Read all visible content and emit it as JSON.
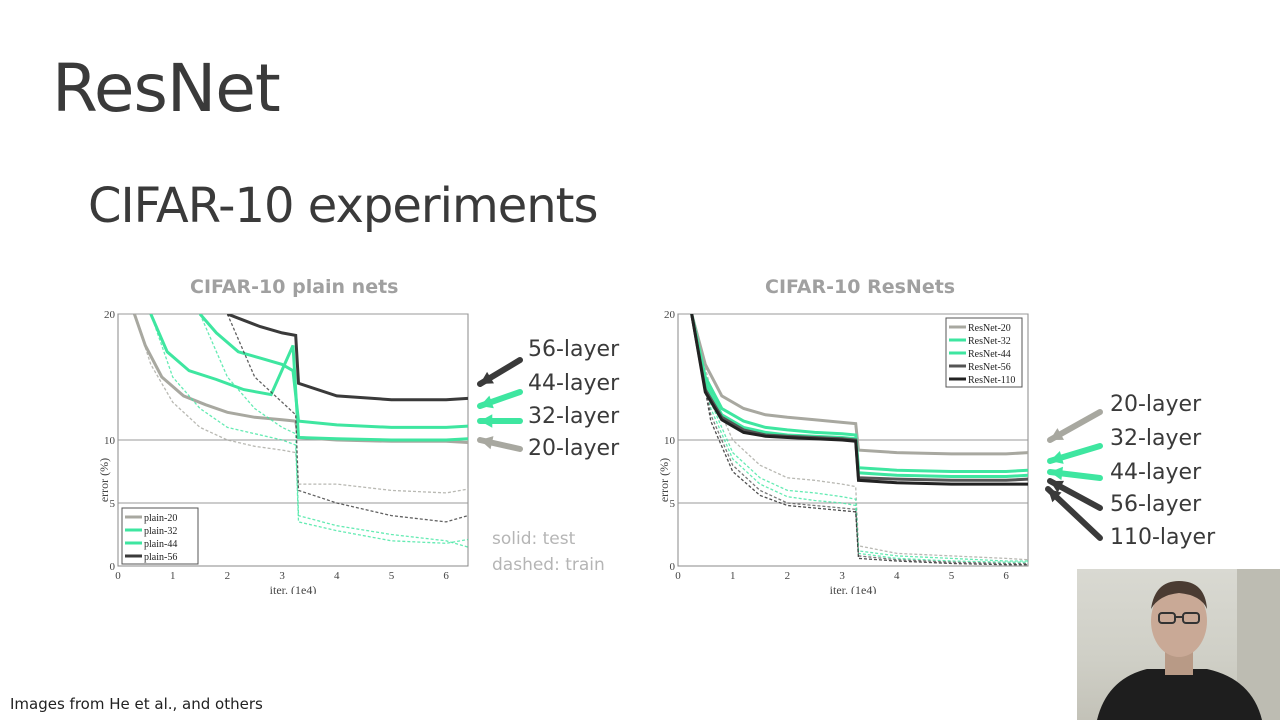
{
  "slide": {
    "title": "ResNet",
    "subtitle": "CIFAR-10 experiments",
    "caption": "Images from He et al., and others",
    "legend_note": [
      "solid: test",
      "dashed: train"
    ]
  },
  "annotations_left": [
    {
      "label": "56-layer",
      "color": "#3a3a3a"
    },
    {
      "label": "44-layer",
      "color": "#3ee6a0"
    },
    {
      "label": "32-layer",
      "color": "#3ee6a0"
    },
    {
      "label": "20-layer",
      "color": "#a8a8a0"
    }
  ],
  "annotations_right": [
    {
      "label": "20-layer",
      "color": "#a8a8a0"
    },
    {
      "label": "32-layer",
      "color": "#3ee6a0"
    },
    {
      "label": "44-layer",
      "color": "#3ee6a0"
    },
    {
      "label": "56-layer",
      "color": "#3a3a3a"
    },
    {
      "label": "110-layer",
      "color": "#3a3a3a"
    }
  ],
  "chart_data": [
    {
      "type": "line",
      "title": "CIFAR-10 plain nets",
      "xlabel": "iter. (1e4)",
      "ylabel": "error (%)",
      "xlim": [
        0,
        6.4
      ],
      "ylim": [
        0,
        20
      ],
      "xticks": [
        "0",
        "1",
        "2",
        "3",
        "4",
        "5",
        "6"
      ],
      "yticks": [
        "0",
        "5",
        "10",
        "20"
      ],
      "grid_y": [
        5,
        10,
        20
      ],
      "legend_position": "bottom-left",
      "series": [
        {
          "name": "plain-20",
          "color": "#a8a8a0",
          "test": [
            [
              0.3,
              20
            ],
            [
              0.5,
              17.5
            ],
            [
              0.8,
              15
            ],
            [
              1.2,
              13.5
            ],
            [
              1.6,
              12.8
            ],
            [
              2.0,
              12.2
            ],
            [
              2.5,
              11.8
            ],
            [
              3.0,
              11.6
            ],
            [
              3.25,
              11.5
            ],
            [
              3.3,
              10.2
            ],
            [
              4,
              10
            ],
            [
              5,
              9.9
            ],
            [
              6,
              9.9
            ],
            [
              6.4,
              9.8
            ]
          ],
          "train": [
            [
              0.3,
              20
            ],
            [
              0.6,
              16
            ],
            [
              1.0,
              13
            ],
            [
              1.5,
              11
            ],
            [
              2.0,
              10
            ],
            [
              2.5,
              9.5
            ],
            [
              3.0,
              9.2
            ],
            [
              3.25,
              9
            ],
            [
              3.3,
              6.5
            ],
            [
              4,
              6.5
            ],
            [
              5,
              6
            ],
            [
              6,
              5.8
            ],
            [
              6.4,
              6.1
            ]
          ]
        },
        {
          "name": "plain-32",
          "color": "#3ee6a0",
          "test": [
            [
              0.6,
              20
            ],
            [
              0.9,
              17
            ],
            [
              1.3,
              15.5
            ],
            [
              1.8,
              14.8
            ],
            [
              2.3,
              14
            ],
            [
              2.8,
              13.6
            ],
            [
              3.2,
              17.5
            ],
            [
              3.3,
              10.2
            ],
            [
              4,
              10.1
            ],
            [
              5,
              10
            ],
            [
              6,
              10
            ],
            [
              6.4,
              10.1
            ]
          ],
          "train": [
            [
              0.6,
              20
            ],
            [
              1.0,
              15
            ],
            [
              1.5,
              12.5
            ],
            [
              2.0,
              11
            ],
            [
              2.5,
              10.5
            ],
            [
              3.0,
              10
            ],
            [
              3.25,
              9.6
            ],
            [
              3.3,
              3.5
            ],
            [
              4,
              2.8
            ],
            [
              5,
              2
            ],
            [
              6,
              1.8
            ],
            [
              6.4,
              2.1
            ]
          ]
        },
        {
          "name": "plain-44",
          "color": "#3ee6a0",
          "test": [
            [
              1.5,
              20
            ],
            [
              1.8,
              18.5
            ],
            [
              2.2,
              17
            ],
            [
              2.6,
              16.5
            ],
            [
              3.0,
              16
            ],
            [
              3.2,
              15.5
            ],
            [
              3.3,
              11.5
            ],
            [
              4,
              11.2
            ],
            [
              5,
              11
            ],
            [
              6,
              11
            ],
            [
              6.4,
              11.1
            ]
          ],
          "train": [
            [
              1.5,
              20
            ],
            [
              2.0,
              15
            ],
            [
              2.5,
              12.5
            ],
            [
              3.0,
              11
            ],
            [
              3.25,
              10.5
            ],
            [
              3.3,
              4
            ],
            [
              4,
              3.2
            ],
            [
              5,
              2.5
            ],
            [
              6,
              2
            ],
            [
              6.4,
              1.5
            ]
          ]
        },
        {
          "name": "plain-56",
          "color": "#3a3a3a",
          "test": [
            [
              2.0,
              20
            ],
            [
              2.3,
              19.5
            ],
            [
              2.6,
              19
            ],
            [
              3.0,
              18.5
            ],
            [
              3.25,
              18.3
            ],
            [
              3.3,
              14.5
            ],
            [
              4,
              13.5
            ],
            [
              5,
              13.2
            ],
            [
              6,
              13.2
            ],
            [
              6.4,
              13.3
            ]
          ],
          "train": [
            [
              2.0,
              20
            ],
            [
              2.5,
              15
            ],
            [
              3.0,
              13
            ],
            [
              3.25,
              12
            ],
            [
              3.3,
              6
            ],
            [
              4,
              5
            ],
            [
              5,
              4
            ],
            [
              6,
              3.5
            ],
            [
              6.4,
              4
            ]
          ]
        }
      ]
    },
    {
      "type": "line",
      "title": "CIFAR-10 ResNets",
      "xlabel": "iter. (1e4)",
      "ylabel": "error (%)",
      "xlim": [
        0,
        6.4
      ],
      "ylim": [
        0,
        20
      ],
      "xticks": [
        "0",
        "1",
        "2",
        "3",
        "4",
        "5",
        "6"
      ],
      "yticks": [
        "0",
        "5",
        "10",
        "20"
      ],
      "grid_y": [
        5,
        10,
        20
      ],
      "legend_position": "top-right",
      "series": [
        {
          "name": "ResNet-20",
          "color": "#a8a8a0",
          "test": [
            [
              0.25,
              20
            ],
            [
              0.5,
              16
            ],
            [
              0.8,
              13.5
            ],
            [
              1.2,
              12.5
            ],
            [
              1.6,
              12
            ],
            [
              2.0,
              11.8
            ],
            [
              2.5,
              11.6
            ],
            [
              3.0,
              11.4
            ],
            [
              3.25,
              11.3
            ],
            [
              3.3,
              9.2
            ],
            [
              4,
              9
            ],
            [
              5,
              8.9
            ],
            [
              6,
              8.9
            ],
            [
              6.4,
              9
            ]
          ],
          "train": [
            [
              0.25,
              20
            ],
            [
              0.6,
              14
            ],
            [
              1.0,
              10
            ],
            [
              1.5,
              8
            ],
            [
              2.0,
              7
            ],
            [
              2.5,
              6.8
            ],
            [
              3.0,
              6.5
            ],
            [
              3.25,
              6.3
            ],
            [
              3.3,
              1.6
            ],
            [
              4,
              1
            ],
            [
              5,
              0.8
            ],
            [
              6,
              0.6
            ],
            [
              6.4,
              0.5
            ]
          ]
        },
        {
          "name": "ResNet-32",
          "color": "#3ee6a0",
          "test": [
            [
              0.25,
              20
            ],
            [
              0.5,
              15
            ],
            [
              0.8,
              12.5
            ],
            [
              1.2,
              11.5
            ],
            [
              1.6,
              11
            ],
            [
              2.0,
              10.8
            ],
            [
              2.5,
              10.6
            ],
            [
              3.0,
              10.5
            ],
            [
              3.25,
              10.4
            ],
            [
              3.3,
              7.8
            ],
            [
              4,
              7.6
            ],
            [
              5,
              7.5
            ],
            [
              6,
              7.5
            ],
            [
              6.4,
              7.6
            ]
          ],
          "train": [
            [
              0.25,
              20
            ],
            [
              0.6,
              13
            ],
            [
              1.0,
              9
            ],
            [
              1.5,
              7
            ],
            [
              2.0,
              6
            ],
            [
              2.5,
              5.8
            ],
            [
              3.0,
              5.5
            ],
            [
              3.25,
              5.3
            ],
            [
              3.3,
              1.2
            ],
            [
              4,
              0.8
            ],
            [
              5,
              0.6
            ],
            [
              6,
              0.4
            ],
            [
              6.4,
              0.4
            ]
          ]
        },
        {
          "name": "ResNet-44",
          "color": "#3ee6a0",
          "test": [
            [
              0.25,
              20
            ],
            [
              0.5,
              14.5
            ],
            [
              0.8,
              12
            ],
            [
              1.2,
              11
            ],
            [
              1.6,
              10.6
            ],
            [
              2.0,
              10.4
            ],
            [
              2.5,
              10.3
            ],
            [
              3.0,
              10.2
            ],
            [
              3.25,
              10.1
            ],
            [
              3.3,
              7.4
            ],
            [
              4,
              7.2
            ],
            [
              5,
              7.1
            ],
            [
              6,
              7.1
            ],
            [
              6.4,
              7.2
            ]
          ],
          "train": [
            [
              0.25,
              20
            ],
            [
              0.6,
              12.5
            ],
            [
              1.0,
              8.5
            ],
            [
              1.5,
              6.5
            ],
            [
              2.0,
              5.5
            ],
            [
              2.5,
              5.2
            ],
            [
              3.0,
              5
            ],
            [
              3.25,
              4.8
            ],
            [
              3.3,
              1
            ],
            [
              4,
              0.6
            ],
            [
              5,
              0.4
            ],
            [
              6,
              0.3
            ],
            [
              6.4,
              0.3
            ]
          ]
        },
        {
          "name": "ResNet-56",
          "color": "#555555",
          "test": [
            [
              0.25,
              20
            ],
            [
              0.5,
              14
            ],
            [
              0.8,
              11.8
            ],
            [
              1.2,
              10.8
            ],
            [
              1.6,
              10.4
            ],
            [
              2.0,
              10.3
            ],
            [
              2.5,
              10.2
            ],
            [
              3.0,
              10.1
            ],
            [
              3.25,
              10
            ],
            [
              3.3,
              7
            ],
            [
              4,
              6.9
            ],
            [
              5,
              6.8
            ],
            [
              6,
              6.8
            ],
            [
              6.4,
              6.9
            ]
          ],
          "train": [
            [
              0.25,
              20
            ],
            [
              0.6,
              12
            ],
            [
              1.0,
              8
            ],
            [
              1.5,
              6
            ],
            [
              2.0,
              5
            ],
            [
              2.5,
              4.8
            ],
            [
              3.0,
              4.6
            ],
            [
              3.25,
              4.5
            ],
            [
              3.3,
              0.8
            ],
            [
              4,
              0.5
            ],
            [
              5,
              0.3
            ],
            [
              6,
              0.2
            ],
            [
              6.4,
              0.2
            ]
          ]
        },
        {
          "name": "ResNet-110",
          "color": "#222222",
          "test": [
            [
              0.25,
              20
            ],
            [
              0.5,
              13.8
            ],
            [
              0.8,
              11.6
            ],
            [
              1.2,
              10.6
            ],
            [
              1.6,
              10.3
            ],
            [
              2.0,
              10.2
            ],
            [
              2.5,
              10.1
            ],
            [
              3.0,
              10
            ],
            [
              3.25,
              9.9
            ],
            [
              3.3,
              6.8
            ],
            [
              4,
              6.6
            ],
            [
              5,
              6.5
            ],
            [
              6,
              6.5
            ],
            [
              6.4,
              6.5
            ]
          ],
          "train": [
            [
              0.25,
              20
            ],
            [
              0.6,
              11.5
            ],
            [
              1.0,
              7.5
            ],
            [
              1.5,
              5.6
            ],
            [
              2.0,
              4.8
            ],
            [
              2.5,
              4.6
            ],
            [
              3.0,
              4.4
            ],
            [
              3.25,
              4.3
            ],
            [
              3.3,
              0.6
            ],
            [
              4,
              0.4
            ],
            [
              5,
              0.2
            ],
            [
              6,
              0.1
            ],
            [
              6.4,
              0.1
            ]
          ]
        }
      ]
    }
  ]
}
